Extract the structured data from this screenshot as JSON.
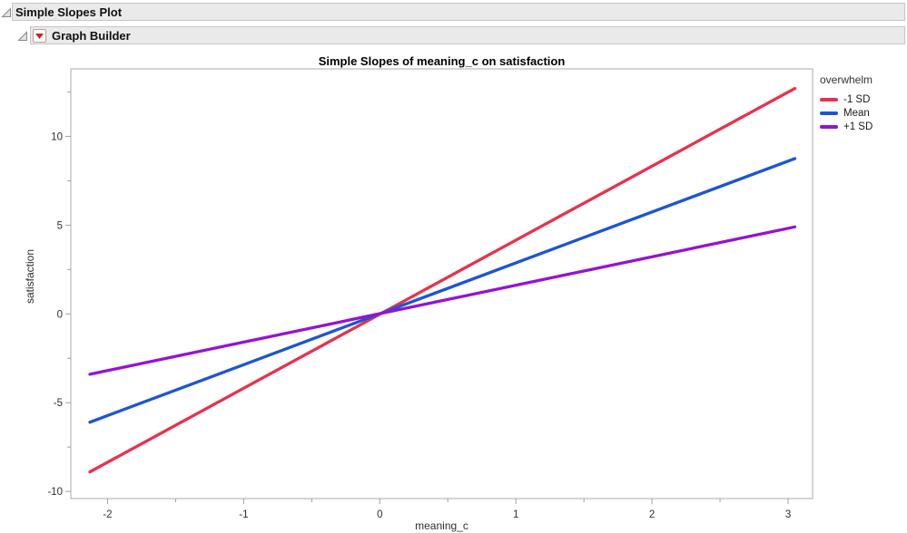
{
  "outline": {
    "level1": {
      "title": "Simple Slopes Plot"
    },
    "level2": {
      "title": "Graph Builder"
    }
  },
  "colors": {
    "header_bg": "#eaeaea",
    "header_border": "#c6c6c6",
    "frame_border": "#ababab",
    "tick_color": "#a0a0a0",
    "tick_label_color": "#2e2e2e",
    "red_triangle_menu": "#cc2222",
    "series_red": "#e8314b",
    "series_blue": "#1c55d4",
    "series_purple": "#9512d4"
  },
  "chart_data": {
    "type": "line",
    "title": "Simple Slopes of meaning_c on satisfaction",
    "xlabel": "meaning_c",
    "ylabel": "satisfaction",
    "xlim": [
      -2.27,
      3.18
    ],
    "ylim": [
      -10.4,
      13.8
    ],
    "x_major_ticks": [
      -2,
      -1,
      0,
      1,
      2,
      3
    ],
    "x_minor_ticks": [
      -1.5,
      -0.5,
      0.5,
      1.5,
      2.5
    ],
    "y_major_ticks": [
      -10,
      -5,
      0,
      5,
      10
    ],
    "y_minor_ticks": [
      -7.5,
      -2.5,
      2.5,
      7.5,
      12.5
    ],
    "grid": false,
    "legend_title": "overwhelm",
    "legend_position": "right",
    "series": [
      {
        "name": "-1 SD",
        "color": "#e8314b",
        "x": [
          -2.13,
          3.05
        ],
        "y": [
          -8.9,
          12.7
        ]
      },
      {
        "name": "Mean",
        "color": "#1c55d4",
        "x": [
          -2.13,
          3.05
        ],
        "y": [
          -6.1,
          8.75
        ]
      },
      {
        "name": "+1 SD",
        "color": "#9512d4",
        "x": [
          -2.13,
          3.05
        ],
        "y": [
          -3.4,
          4.9
        ]
      }
    ],
    "note_intersection": [
      0,
      0
    ]
  }
}
